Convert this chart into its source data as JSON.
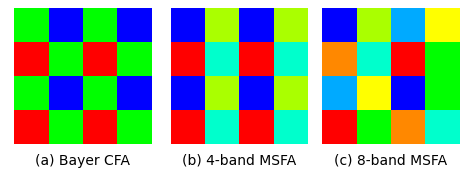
{
  "grids": [
    {
      "title": "(a) Bayer CFA",
      "colors": [
        [
          "#00FF00",
          "#0000FF",
          "#00FF00",
          "#0000FF"
        ],
        [
          "#FF0000",
          "#00FF00",
          "#FF0000",
          "#00FF00"
        ],
        [
          "#00FF00",
          "#0000FF",
          "#00FF00",
          "#0000FF"
        ],
        [
          "#FF0000",
          "#00FF00",
          "#FF0000",
          "#00FF00"
        ]
      ]
    },
    {
      "title": "(b) 4-band MSFA",
      "colors": [
        [
          "#0000FF",
          "#AAFF00",
          "#0000FF",
          "#AAFF00"
        ],
        [
          "#FF0000",
          "#00FFCC",
          "#FF0000",
          "#00FFCC"
        ],
        [
          "#0000FF",
          "#AAFF00",
          "#0000FF",
          "#AAFF00"
        ],
        [
          "#FF0000",
          "#00FFCC",
          "#FF0000",
          "#00FFCC"
        ]
      ]
    },
    {
      "title": "(c) 8-band MSFA",
      "colors": [
        [
          "#0000FF",
          "#AAFF00",
          "#00AAFF",
          "#FFFF00"
        ],
        [
          "#FF8800",
          "#00FFCC",
          "#FF0000",
          "#00FF00"
        ],
        [
          "#00AAFF",
          "#FFFF00",
          "#0000FF",
          "#00FF00"
        ],
        [
          "#FF0000",
          "#00FF00",
          "#FF8800",
          "#00FFCC"
        ]
      ]
    }
  ],
  "grid_size": 4,
  "bg_color": "#ffffff",
  "title_fontsize": 10
}
